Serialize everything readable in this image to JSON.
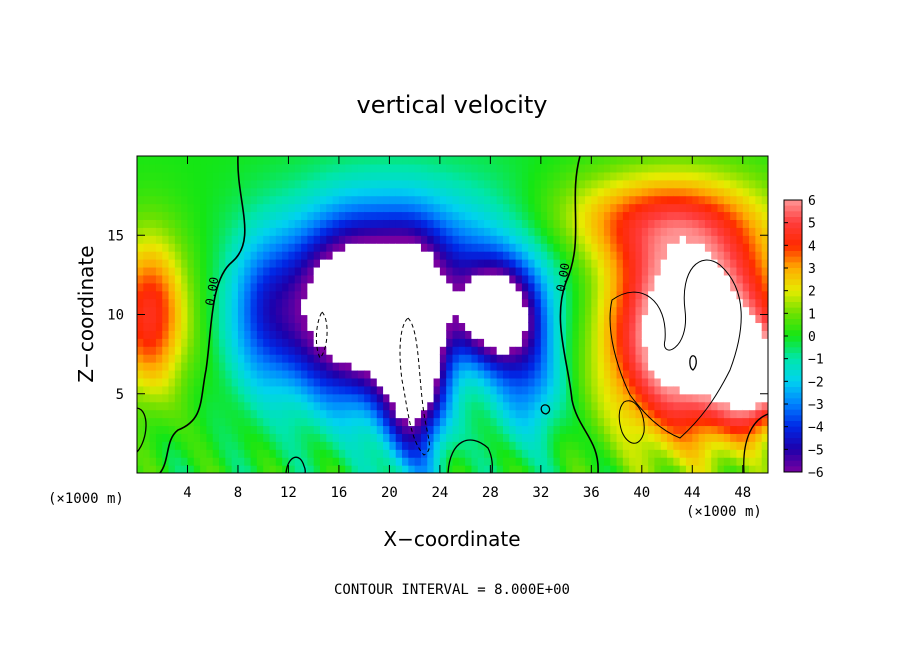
{
  "chart_data": {
    "type": "heatmap",
    "title": "vertical velocity",
    "xlabel": "X−coordinate",
    "ylabel": "Z−coordinate",
    "x_unit": "(×1000 m)",
    "y_unit": "(×1000 m)",
    "xlim": [
      0,
      50
    ],
    "ylim": [
      0,
      20
    ],
    "x_ticks": [
      "4",
      "8",
      "12",
      "16",
      "20",
      "24",
      "28",
      "32",
      "36",
      "40",
      "44",
      "48"
    ],
    "x_tick_values": [
      4,
      8,
      12,
      16,
      20,
      24,
      28,
      32,
      36,
      40,
      44,
      48
    ],
    "y_ticks": [
      "5",
      "10",
      "15"
    ],
    "y_tick_values": [
      5,
      10,
      15
    ],
    "colorbar": {
      "min": -6,
      "max": 6,
      "ticks": [
        "6",
        "5",
        "4",
        "3",
        "2",
        "1",
        "0",
        "−1",
        "−2",
        "−3",
        "−4",
        "−5",
        "−6"
      ],
      "tick_values": [
        6,
        5,
        4,
        3,
        2,
        1,
        0,
        -1,
        -2,
        -3,
        -4,
        -5,
        -6
      ]
    },
    "contour_labels": [
      "0.00",
      "0.00"
    ],
    "footer": "CONTOUR INTERVAL = 8.000E+00",
    "features": [
      {
        "kind": "updraft",
        "cx": 1,
        "cz": 10,
        "rx": 3,
        "rz": 5,
        "w": 4.5
      },
      {
        "kind": "updraft",
        "cx": 44,
        "cz": 9,
        "rx": 6.5,
        "rz": 6.5,
        "w": 9
      },
      {
        "kind": "updraft",
        "cx": 49,
        "cz": 6,
        "rx": 2.5,
        "rz": 3,
        "w": 5
      },
      {
        "kind": "updraft",
        "cx": 40,
        "cz": 16,
        "rx": 9,
        "rz": 3,
        "w": 3
      },
      {
        "kind": "downdraft",
        "cx": 17,
        "cz": 10,
        "rx": 5,
        "rz": 5.5,
        "w": -8
      },
      {
        "kind": "downdraft",
        "cx": 22,
        "cz": 7,
        "rx": 2.5,
        "rz": 6,
        "w": -8
      },
      {
        "kind": "downdraft",
        "cx": 28.5,
        "cz": 10,
        "rx": 3,
        "rz": 3,
        "w": -7
      },
      {
        "kind": "downdraft",
        "cx": 24,
        "cz": 13,
        "rx": 10,
        "rz": 5,
        "w": -3.5
      },
      {
        "kind": "downdraft",
        "cx": 10,
        "cz": 10,
        "rx": 3,
        "rz": 5,
        "w": -3
      },
      {
        "kind": "downdraft",
        "cx": 31,
        "cz": 6,
        "rx": 3,
        "rz": 4,
        "w": -3
      }
    ]
  }
}
